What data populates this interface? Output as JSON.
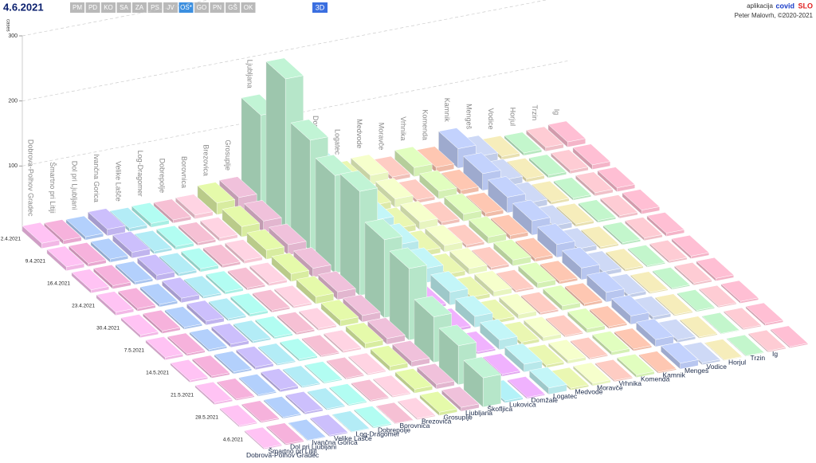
{
  "header": {
    "date": "4.6.2021",
    "buttons": [
      "PM",
      "PD",
      "KO",
      "SA",
      "ZA",
      "PS",
      "JV",
      "OS*",
      "GO",
      "PN",
      "GŠ",
      "OK"
    ],
    "active_button": "OS*",
    "mode": "3D",
    "app_label": "aplikacija",
    "app_name_a": "covid",
    "app_name_b": "SLO",
    "author": "Peter Malovrh, ©2020-2021"
  },
  "chart_data": {
    "type": "bar3d",
    "y_label": "cases",
    "ylim": [
      0,
      300
    ],
    "yticks": [
      100,
      200,
      300
    ],
    "categories": [
      "2.4.2021",
      "9.4.2021",
      "16.4.2021",
      "23.4.2021",
      "30.4.2021",
      "7.5.2021",
      "14.5.2021",
      "21.5.2021",
      "28.5.2021",
      "4.6.2021"
    ],
    "series": [
      {
        "name": "Dobrova-Polhov Gradec",
        "color": "#f2b8e6",
        "values": [
          8,
          6,
          5,
          5,
          4,
          4,
          3,
          3,
          2,
          2
        ]
      },
      {
        "name": "Šmartno pri Litiji",
        "color": "#e8a8d0",
        "values": [
          6,
          5,
          5,
          4,
          4,
          3,
          3,
          2,
          2,
          2
        ]
      },
      {
        "name": "Dol pri Ljubljani",
        "color": "#a9c4ee",
        "values": [
          5,
          5,
          4,
          4,
          3,
          3,
          3,
          2,
          2,
          1
        ]
      },
      {
        "name": "Ivančna Gorica",
        "color": "#c0b4ee",
        "values": [
          10,
          9,
          8,
          7,
          6,
          5,
          4,
          4,
          3,
          2
        ]
      },
      {
        "name": "Velike Lašče",
        "color": "#a9dfe8",
        "values": [
          5,
          4,
          4,
          3,
          3,
          3,
          2,
          2,
          2,
          1
        ]
      },
      {
        "name": "Log-Dragomer",
        "color": "#a8efe4",
        "values": [
          6,
          5,
          5,
          4,
          4,
          3,
          3,
          2,
          2,
          2
        ]
      },
      {
        "name": "Dobrepolje",
        "color": "#e8b5c8",
        "values": [
          5,
          4,
          4,
          3,
          3,
          3,
          2,
          2,
          2,
          1
        ]
      },
      {
        "name": "Borovnica",
        "color": "#f7c8d6",
        "values": [
          6,
          5,
          5,
          4,
          3,
          3,
          3,
          2,
          2,
          2
        ]
      },
      {
        "name": "Brezovica",
        "color": "#d8eca0",
        "values": [
          18,
          16,
          14,
          12,
          11,
          9,
          8,
          7,
          6,
          5
        ]
      },
      {
        "name": "Grosuplje",
        "color": "#e2b6cf",
        "values": [
          20,
          18,
          16,
          14,
          12,
          10,
          9,
          8,
          7,
          6
        ]
      },
      {
        "name": "Ljubljana",
        "color": "#b6e6c9",
        "values": [
          140,
          230,
          170,
          150,
          160,
          120,
          110,
          70,
          60,
          45
        ]
      },
      {
        "name": "Škofljica",
        "color": "#a9e4ea",
        "values": [
          12,
          10,
          9,
          8,
          7,
          6,
          5,
          4,
          4,
          3
        ]
      },
      {
        "name": "Lukovica",
        "color": "#e2a8f0",
        "values": [
          8,
          7,
          6,
          6,
          5,
          4,
          4,
          3,
          3,
          2
        ]
      },
      {
        "name": "Domžale",
        "color": "#b8e8ea",
        "values": [
          35,
          30,
          28,
          25,
          22,
          20,
          17,
          15,
          12,
          10
        ]
      },
      {
        "name": "Logatec",
        "color": "#dde9a8",
        "values": [
          12,
          10,
          9,
          8,
          7,
          6,
          5,
          5,
          4,
          3
        ]
      },
      {
        "name": "Medvode",
        "color": "#e8f5c0",
        "values": [
          15,
          13,
          12,
          10,
          9,
          8,
          7,
          6,
          5,
          4
        ]
      },
      {
        "name": "Moravče",
        "color": "#f0c0b8",
        "values": [
          6,
          5,
          5,
          4,
          4,
          3,
          3,
          2,
          2,
          2
        ]
      },
      {
        "name": "Vrhnika",
        "color": "#d4f0b4",
        "values": [
          14,
          12,
          11,
          10,
          9,
          8,
          7,
          6,
          5,
          4
        ]
      },
      {
        "name": "Komenda",
        "color": "#f0bca8",
        "values": [
          8,
          7,
          6,
          6,
          5,
          4,
          4,
          3,
          3,
          2
        ]
      },
      {
        "name": "Kamnik",
        "color": "#b8c6ef",
        "values": [
          30,
          26,
          24,
          22,
          20,
          18,
          15,
          13,
          11,
          9
        ]
      },
      {
        "name": "Mengeš",
        "color": "#c2cde8",
        "values": [
          12,
          10,
          9,
          8,
          7,
          6,
          5,
          5,
          4,
          3
        ]
      },
      {
        "name": "Vodice",
        "color": "#e8e0b0",
        "values": [
          5,
          5,
          4,
          4,
          3,
          3,
          2,
          2,
          2,
          1
        ]
      },
      {
        "name": "Horjul",
        "color": "#b8e8c0",
        "values": [
          4,
          4,
          3,
          3,
          3,
          2,
          2,
          2,
          1,
          1
        ]
      },
      {
        "name": "Trzin",
        "color": "#f0c0c8",
        "values": [
          6,
          5,
          5,
          4,
          4,
          3,
          3,
          2,
          2,
          2
        ]
      },
      {
        "name": "Ig",
        "color": "#f4b4c8",
        "values": [
          8,
          7,
          6,
          6,
          5,
          4,
          4,
          3,
          3,
          2
        ]
      }
    ]
  }
}
